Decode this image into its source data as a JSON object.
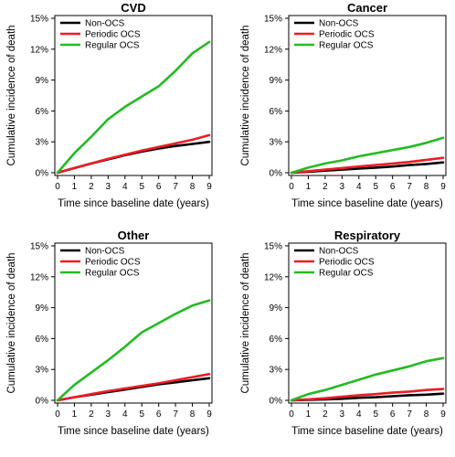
{
  "chart_data": [
    {
      "type": "line",
      "title": "CVD",
      "xlabel": "Time since baseline date (years)",
      "ylabel": "Cumulative incidence of death",
      "xlim": [
        0,
        9
      ],
      "ylim": [
        0,
        15
      ],
      "x_ticks": [
        "0",
        "1",
        "2",
        "3",
        "4",
        "5",
        "6",
        "7",
        "8",
        "9"
      ],
      "y_ticks": [
        "0%",
        "3%",
        "6%",
        "9%",
        "12%",
        "15%"
      ],
      "legend": "top-left",
      "grid": false,
      "x": [
        0,
        1,
        2,
        3,
        4,
        5,
        6,
        7,
        8,
        9
      ],
      "series": [
        {
          "name": "Non-OCS",
          "color": "#000000",
          "values": [
            0,
            0.45,
            0.9,
            1.3,
            1.7,
            2.05,
            2.35,
            2.6,
            2.8,
            3.0
          ]
        },
        {
          "name": "Periodic OCS",
          "color": "#ee1c25",
          "values": [
            0,
            0.45,
            0.9,
            1.35,
            1.75,
            2.15,
            2.5,
            2.85,
            3.2,
            3.65
          ]
        },
        {
          "name": "Regular OCS",
          "color": "#22bb22",
          "values": [
            0,
            1.9,
            3.5,
            5.2,
            6.4,
            7.4,
            8.4,
            9.9,
            11.6,
            12.7
          ]
        }
      ]
    },
    {
      "type": "line",
      "title": "Cancer",
      "xlabel": "Time since baseline date (years)",
      "ylabel": "Cumulative incidence of death",
      "xlim": [
        0,
        9
      ],
      "ylim": [
        0,
        15
      ],
      "x_ticks": [
        "0",
        "1",
        "2",
        "3",
        "4",
        "5",
        "6",
        "7",
        "8",
        "9"
      ],
      "y_ticks": [
        "0%",
        "3%",
        "6%",
        "9%",
        "12%",
        "15%"
      ],
      "legend": "top-left",
      "grid": false,
      "x": [
        0,
        1,
        2,
        3,
        4,
        5,
        6,
        7,
        8,
        9
      ],
      "series": [
        {
          "name": "Non-OCS",
          "color": "#000000",
          "values": [
            0,
            0.1,
            0.2,
            0.3,
            0.4,
            0.5,
            0.6,
            0.75,
            0.85,
            1.0
          ]
        },
        {
          "name": "Periodic OCS",
          "color": "#ee1c25",
          "values": [
            0,
            0.15,
            0.3,
            0.45,
            0.6,
            0.75,
            0.9,
            1.05,
            1.25,
            1.45
          ]
        },
        {
          "name": "Regular OCS",
          "color": "#22bb22",
          "values": [
            0,
            0.5,
            0.9,
            1.2,
            1.6,
            1.9,
            2.2,
            2.5,
            2.9,
            3.4
          ]
        }
      ]
    },
    {
      "type": "line",
      "title": "Other",
      "xlabel": "Time since baseline date (years)",
      "ylabel": "Cumulative incidence of death",
      "xlim": [
        0,
        9
      ],
      "ylim": [
        0,
        15
      ],
      "x_ticks": [
        "0",
        "1",
        "2",
        "3",
        "4",
        "5",
        "6",
        "7",
        "8",
        "9"
      ],
      "y_ticks": [
        "0%",
        "3%",
        "6%",
        "9%",
        "12%",
        "15%"
      ],
      "legend": "top-left",
      "grid": false,
      "x": [
        0,
        1,
        2,
        3,
        4,
        5,
        6,
        7,
        8,
        9
      ],
      "series": [
        {
          "name": "Non-OCS",
          "color": "#000000",
          "values": [
            0,
            0.3,
            0.55,
            0.8,
            1.05,
            1.3,
            1.55,
            1.75,
            1.95,
            2.15
          ]
        },
        {
          "name": "Periodic OCS",
          "color": "#ee1c25",
          "values": [
            0,
            0.3,
            0.6,
            0.9,
            1.15,
            1.4,
            1.65,
            1.95,
            2.25,
            2.55
          ]
        },
        {
          "name": "Regular OCS",
          "color": "#22bb22",
          "values": [
            0,
            1.5,
            2.7,
            3.9,
            5.2,
            6.6,
            7.5,
            8.4,
            9.2,
            9.7
          ]
        }
      ]
    },
    {
      "type": "line",
      "title": "Respiratory",
      "xlabel": "Time since baseline date (years)",
      "ylabel": "Cumulative incidence of death",
      "xlim": [
        0,
        9
      ],
      "ylim": [
        0,
        15
      ],
      "x_ticks": [
        "0",
        "1",
        "2",
        "3",
        "4",
        "5",
        "6",
        "7",
        "8",
        "9"
      ],
      "y_ticks": [
        "0%",
        "3%",
        "6%",
        "9%",
        "12%",
        "15%"
      ],
      "legend": "top-left",
      "grid": false,
      "x": [
        0,
        1,
        2,
        3,
        4,
        5,
        6,
        7,
        8,
        9
      ],
      "series": [
        {
          "name": "Non-OCS",
          "color": "#000000",
          "values": [
            0,
            0.05,
            0.1,
            0.15,
            0.25,
            0.3,
            0.4,
            0.5,
            0.55,
            0.65
          ]
        },
        {
          "name": "Periodic OCS",
          "color": "#ee1c25",
          "values": [
            0,
            0.1,
            0.2,
            0.35,
            0.5,
            0.6,
            0.75,
            0.85,
            1.0,
            1.1
          ]
        },
        {
          "name": "Regular OCS",
          "color": "#22bb22",
          "values": [
            0,
            0.6,
            1.0,
            1.5,
            2.0,
            2.5,
            2.9,
            3.3,
            3.8,
            4.1
          ]
        }
      ]
    }
  ]
}
